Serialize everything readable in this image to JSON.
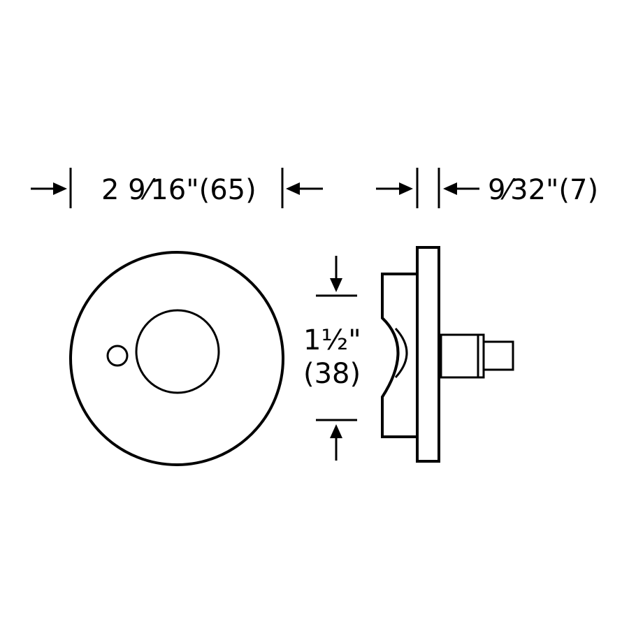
{
  "dimensions": {
    "rose_diameter": {
      "text": "2 9⁄16\"(65)"
    },
    "rose_thickness": {
      "text": "9⁄32\"(7)"
    },
    "hub_diameter": {
      "line1": "1½\"",
      "line2": "(38)"
    }
  },
  "colors": {
    "ink": "#000000",
    "background": "#ffffff"
  }
}
